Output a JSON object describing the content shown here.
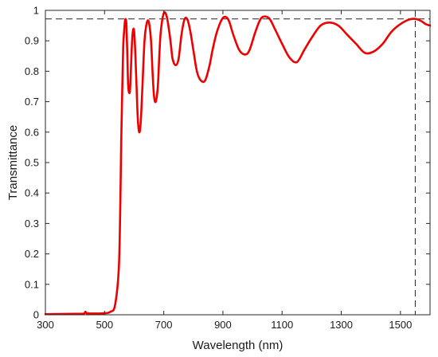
{
  "chart_data": {
    "type": "line",
    "title": "",
    "xlabel": "Wavelength (nm)",
    "ylabel": "Transmittance",
    "xlim": [
      300,
      1600
    ],
    "ylim": [
      0,
      1
    ],
    "x_ticks": [
      300,
      500,
      700,
      900,
      1100,
      1300,
      1500
    ],
    "y_ticks": [
      0,
      0.1,
      0.2,
      0.3,
      0.4,
      0.5,
      0.6,
      0.7,
      0.8,
      0.9,
      1
    ],
    "x_tick_labels": [
      "300",
      "500",
      "700",
      "900",
      "1100",
      "1300",
      "1500"
    ],
    "y_tick_labels": [
      "0",
      "0.1",
      "0.2",
      "0.3",
      "0.4",
      "0.5",
      "0.6",
      "0.7",
      "0.8",
      "0.9",
      "1"
    ],
    "grid": false,
    "series": [
      {
        "color": "#ee0000",
        "x": [
          300,
          400,
          430,
          435,
          440,
          445,
          450,
          500,
          520,
          535,
          548,
          553,
          556,
          560,
          563,
          566,
          569,
          572,
          574,
          577,
          580,
          585,
          588,
          593,
          598,
          602,
          607,
          612,
          617,
          622,
          628,
          635,
          643,
          650,
          657,
          662,
          667,
          673,
          680,
          685,
          690,
          700,
          710,
          720,
          725,
          730,
          740,
          750,
          760,
          770,
          780,
          790,
          800,
          812,
          825,
          840,
          855,
          865,
          880,
          900,
          918,
          935,
          955,
          975,
          990,
          1010,
          1030,
          1055,
          1075,
          1100,
          1125,
          1150,
          1175,
          1200,
          1230,
          1260,
          1290,
          1320,
          1350,
          1380,
          1410,
          1440,
          1470,
          1500,
          1530,
          1550,
          1570,
          1585,
          1600
        ],
        "y": [
          0.002,
          0.003,
          0.004,
          0.01,
          0.004,
          0.005,
          0.004,
          0.005,
          0.01,
          0.03,
          0.15,
          0.35,
          0.55,
          0.75,
          0.88,
          0.93,
          0.965,
          0.97,
          0.95,
          0.85,
          0.75,
          0.73,
          0.78,
          0.9,
          0.94,
          0.9,
          0.78,
          0.65,
          0.6,
          0.63,
          0.75,
          0.9,
          0.96,
          0.96,
          0.9,
          0.8,
          0.72,
          0.7,
          0.75,
          0.85,
          0.93,
          0.99,
          0.98,
          0.92,
          0.88,
          0.84,
          0.82,
          0.84,
          0.92,
          0.97,
          0.97,
          0.93,
          0.87,
          0.8,
          0.77,
          0.77,
          0.82,
          0.87,
          0.93,
          0.975,
          0.97,
          0.92,
          0.87,
          0.855,
          0.87,
          0.93,
          0.975,
          0.975,
          0.94,
          0.89,
          0.845,
          0.83,
          0.87,
          0.91,
          0.95,
          0.96,
          0.95,
          0.92,
          0.89,
          0.86,
          0.865,
          0.89,
          0.93,
          0.955,
          0.97,
          0.972,
          0.965,
          0.955,
          0.95
        ]
      }
    ],
    "reference_lines": [
      {
        "orientation": "horizontal",
        "value": 0.972,
        "style": "dashed",
        "color": "#222222"
      },
      {
        "orientation": "vertical",
        "value": 1550,
        "style": "dashed",
        "color": "#222222"
      }
    ]
  }
}
